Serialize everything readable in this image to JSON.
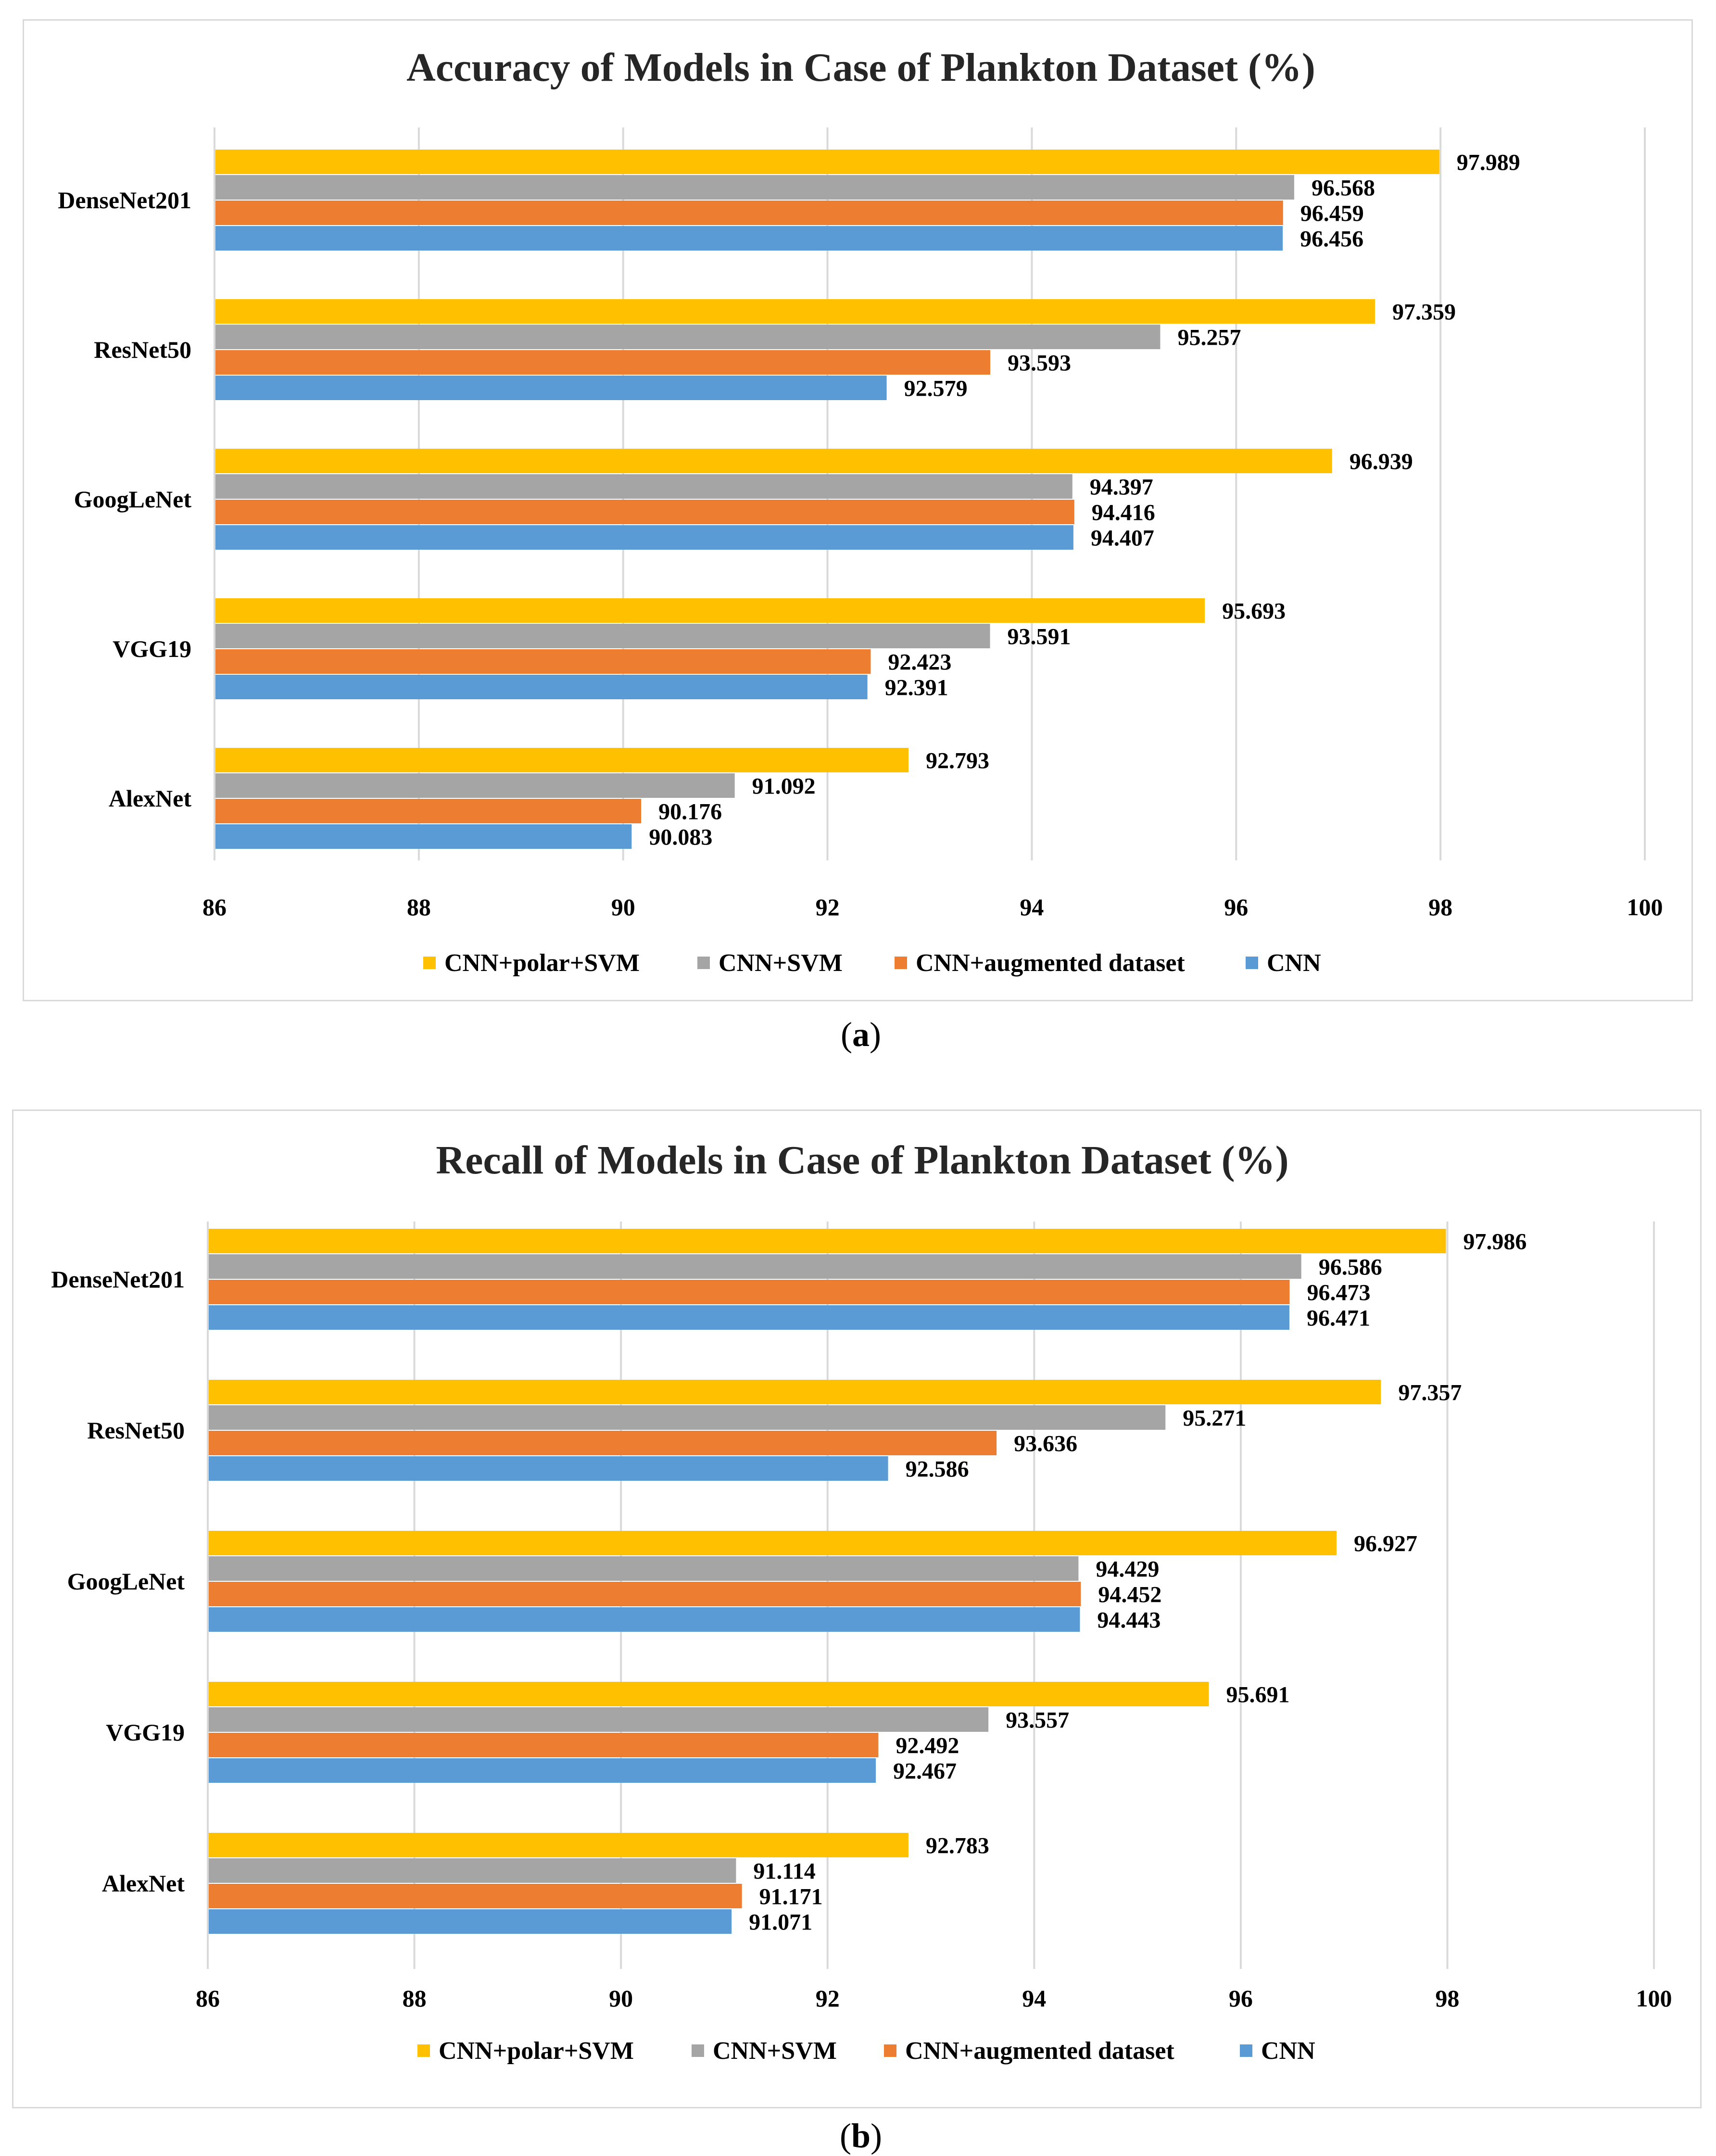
{
  "chart_data": [
    {
      "type": "bar",
      "orientation": "horizontal",
      "title": "Accuracy of Models in Case of Plankton Dataset (%)",
      "categories": [
        "DenseNet201",
        "ResNet50",
        "GoogLeNet",
        "VGG19",
        "AlexNet"
      ],
      "series": [
        {
          "name": "CNN+polar+SVM",
          "color": "#FFC000",
          "values": [
            97.989,
            97.359,
            96.939,
            95.693,
            92.793
          ],
          "labels": [
            "97.989",
            "97.359",
            "96.939",
            "95.693",
            "92.793"
          ]
        },
        {
          "name": "CNN+SVM",
          "color": "#A5A5A5",
          "values": [
            96.568,
            95.257,
            94.397,
            93.591,
            91.092
          ],
          "labels": [
            "96.568",
            "95.257",
            "94.397",
            "93.591",
            "91.092"
          ]
        },
        {
          "name": "CNN+augmented dataset",
          "color": "#ED7D31",
          "values": [
            96.459,
            93.593,
            94.416,
            92.423,
            90.176
          ],
          "labels": [
            "96.459",
            "93.593",
            "94.416",
            "92.423",
            "90.176"
          ]
        },
        {
          "name": "CNN",
          "color": "#5B9BD5",
          "values": [
            96.456,
            92.579,
            94.407,
            92.391,
            90.083
          ],
          "labels": [
            "96.456",
            "92.579",
            "94.407",
            "92.391",
            "90.083"
          ]
        }
      ],
      "xlim": [
        86,
        100
      ],
      "xticks": [
        "86",
        "88",
        "90",
        "92",
        "94",
        "96",
        "98",
        "100"
      ],
      "grid": true,
      "legend": "bottom",
      "caption": "a"
    },
    {
      "type": "bar",
      "orientation": "horizontal",
      "title": "Recall of Models in Case of Plankton Dataset (%)",
      "categories": [
        "DenseNet201",
        "ResNet50",
        "GoogLeNet",
        "VGG19",
        "AlexNet"
      ],
      "series": [
        {
          "name": "CNN+polar+SVM",
          "color": "#FFC000",
          "values": [
            97.986,
            97.357,
            96.927,
            95.691,
            92.783
          ],
          "labels": [
            "97.986",
            "97.357",
            "96.927",
            "95.691",
            "92.783"
          ]
        },
        {
          "name": "CNN+SVM",
          "color": "#A5A5A5",
          "values": [
            96.586,
            95.271,
            94.429,
            93.557,
            91.114
          ],
          "labels": [
            "96.586",
            "95.271",
            "94.429",
            "93.557",
            "91.114"
          ]
        },
        {
          "name": "CNN+augmented dataset",
          "color": "#ED7D31",
          "values": [
            96.473,
            93.636,
            94.452,
            92.492,
            91.171
          ],
          "labels": [
            "96.473",
            "93.636",
            "94.452",
            "92.492",
            "91.171"
          ]
        },
        {
          "name": "CNN",
          "color": "#5B9BD5",
          "values": [
            96.471,
            92.586,
            94.443,
            92.467,
            91.071
          ],
          "labels": [
            "96.471",
            "92.586",
            "94.443",
            "92.467",
            "91.071"
          ]
        }
      ],
      "xlim": [
        86,
        100
      ],
      "xticks": [
        "86",
        "88",
        "90",
        "92",
        "94",
        "96",
        "98",
        "100"
      ],
      "grid": true,
      "legend": "bottom",
      "caption": "b"
    }
  ]
}
